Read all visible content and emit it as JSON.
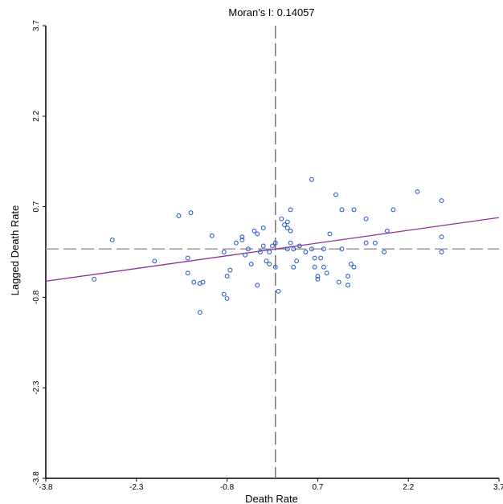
{
  "chart_data": {
    "type": "scatter",
    "title": "Moran's I: 0.14057",
    "xlabel": "Death Rate",
    "ylabel": "Lagged Death Rate",
    "xlim": [
      -3.8,
      3.7
    ],
    "ylim": [
      -3.8,
      3.7
    ],
    "xticks": [
      -3.8,
      -2.3,
      -0.8,
      0.7,
      2.2,
      3.7
    ],
    "yticks": [
      -3.8,
      -2.3,
      -0.8,
      0.7,
      2.2,
      3.7
    ],
    "xtick_labels": [
      "-3.8",
      "-2.3",
      "-0.8",
      "0.7",
      "2.2",
      "3.7"
    ],
    "ytick_labels": [
      "-3.8",
      "-2.3",
      "-0.8",
      "0.7",
      "2.2",
      "3.7"
    ],
    "reference_lines": {
      "x_mean": 0.0,
      "y_mean": 0.0
    },
    "regression": {
      "slope": 0.14057,
      "intercept": 0.0,
      "color": "#8b2f9e"
    },
    "marker_color": "#2f5ec9",
    "grid": false,
    "points": [
      [
        -3.0,
        -0.5
      ],
      [
        -2.7,
        0.15
      ],
      [
        -2.0,
        -0.2
      ],
      [
        -1.6,
        0.55
      ],
      [
        -1.4,
        0.6
      ],
      [
        -1.45,
        -0.15
      ],
      [
        -1.45,
        -0.4
      ],
      [
        -1.35,
        -0.55
      ],
      [
        -1.25,
        -0.57
      ],
      [
        -1.2,
        -0.55
      ],
      [
        -1.25,
        -1.05
      ],
      [
        -1.05,
        0.22
      ],
      [
        -0.85,
        -0.05
      ],
      [
        -0.85,
        -0.75
      ],
      [
        -0.8,
        -0.82
      ],
      [
        -0.75,
        -0.35
      ],
      [
        -0.8,
        -0.45
      ],
      [
        -0.65,
        0.1
      ],
      [
        -0.55,
        0.15
      ],
      [
        -0.55,
        0.2
      ],
      [
        -0.5,
        -0.1
      ],
      [
        -0.45,
        0.0
      ],
      [
        -0.4,
        -0.25
      ],
      [
        -0.35,
        0.3
      ],
      [
        -0.3,
        0.25
      ],
      [
        -0.3,
        -0.6
      ],
      [
        -0.25,
        -0.05
      ],
      [
        -0.2,
        0.35
      ],
      [
        -0.2,
        0.05
      ],
      [
        -0.15,
        -0.2
      ],
      [
        -0.1,
        -0.25
      ],
      [
        -0.1,
        -0.05
      ],
      [
        -0.05,
        0.05
      ],
      [
        0.0,
        0.1
      ],
      [
        0.0,
        -0.3
      ],
      [
        0.05,
        -0.7
      ],
      [
        0.1,
        0.5
      ],
      [
        0.15,
        0.4
      ],
      [
        0.2,
        0.35
      ],
      [
        0.2,
        0.45
      ],
      [
        0.2,
        0.0
      ],
      [
        0.25,
        0.1
      ],
      [
        0.25,
        0.3
      ],
      [
        0.25,
        0.65
      ],
      [
        0.3,
        0.0
      ],
      [
        0.3,
        -0.3
      ],
      [
        0.35,
        -0.2
      ],
      [
        0.4,
        0.05
      ],
      [
        0.5,
        -0.05
      ],
      [
        0.6,
        1.15
      ],
      [
        0.6,
        0.0
      ],
      [
        0.65,
        -0.15
      ],
      [
        0.65,
        -0.3
      ],
      [
        0.7,
        -0.45
      ],
      [
        0.7,
        -0.5
      ],
      [
        0.75,
        -0.15
      ],
      [
        0.8,
        -0.3
      ],
      [
        0.8,
        0.0
      ],
      [
        0.85,
        -0.4
      ],
      [
        0.9,
        0.25
      ],
      [
        1.0,
        0.9
      ],
      [
        1.05,
        -0.55
      ],
      [
        1.1,
        0.65
      ],
      [
        1.1,
        0.0
      ],
      [
        1.2,
        -0.45
      ],
      [
        1.2,
        -0.6
      ],
      [
        1.25,
        -0.25
      ],
      [
        1.3,
        0.65
      ],
      [
        1.3,
        -0.3
      ],
      [
        1.5,
        0.5
      ],
      [
        1.5,
        0.1
      ],
      [
        1.65,
        0.1
      ],
      [
        1.8,
        -0.05
      ],
      [
        1.85,
        0.3
      ],
      [
        1.95,
        0.65
      ],
      [
        2.35,
        0.95
      ],
      [
        2.75,
        0.8
      ],
      [
        2.75,
        0.2
      ],
      [
        2.75,
        -0.05
      ]
    ]
  }
}
